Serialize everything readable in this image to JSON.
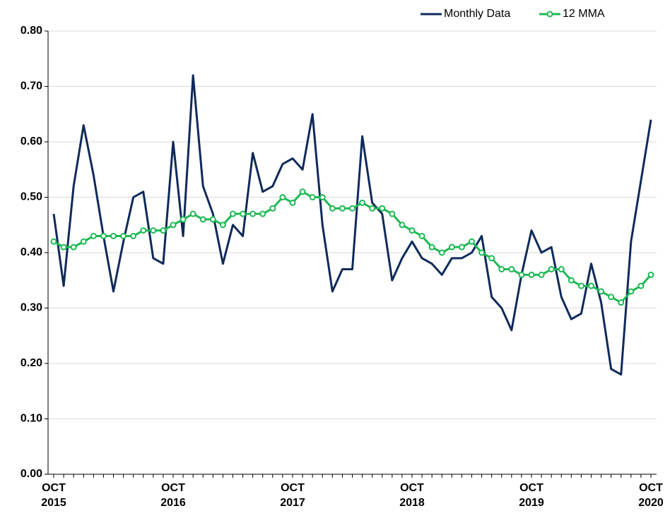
{
  "chart_data": {
    "type": "line",
    "categories": [
      "OCT 2015",
      null,
      null,
      null,
      null,
      null,
      null,
      null,
      null,
      null,
      null,
      null,
      "OCT 2016",
      null,
      null,
      null,
      null,
      null,
      null,
      null,
      null,
      null,
      null,
      null,
      "OCT 2017",
      null,
      null,
      null,
      null,
      null,
      null,
      null,
      null,
      null,
      null,
      null,
      "OCT 2018",
      null,
      null,
      null,
      null,
      null,
      null,
      null,
      null,
      null,
      null,
      null,
      "OCT 2019",
      null,
      null,
      null,
      null,
      null,
      null,
      null,
      null,
      null,
      null,
      null,
      "OCT 2020"
    ],
    "series": [
      {
        "name": "Monthly Data",
        "color": "#0f2a5a",
        "marker": false,
        "values": [
          0.47,
          0.34,
          0.52,
          0.63,
          0.54,
          0.43,
          0.33,
          0.42,
          0.5,
          0.51,
          0.39,
          0.38,
          0.6,
          0.43,
          0.72,
          0.52,
          0.47,
          0.38,
          0.45,
          0.43,
          0.58,
          0.51,
          0.52,
          0.56,
          0.57,
          0.55,
          0.65,
          0.45,
          0.33,
          0.37,
          0.37,
          0.61,
          0.49,
          0.47,
          0.35,
          0.39,
          0.42,
          0.39,
          0.38,
          0.36,
          0.39,
          0.39,
          0.4,
          0.43,
          0.32,
          0.3,
          0.26,
          0.36,
          0.44,
          0.4,
          0.41,
          0.32,
          0.28,
          0.29,
          0.38,
          0.31,
          0.19,
          0.18,
          0.42,
          0.53,
          0.64
        ]
      },
      {
        "name": "12 MMA",
        "color": "#1db954",
        "marker": true,
        "values": [
          0.42,
          0.41,
          0.41,
          0.42,
          0.43,
          0.43,
          0.43,
          0.43,
          0.43,
          0.44,
          0.44,
          0.44,
          0.45,
          0.46,
          0.47,
          0.46,
          0.46,
          0.45,
          0.47,
          0.47,
          0.47,
          0.47,
          0.48,
          0.5,
          0.49,
          0.51,
          0.5,
          0.5,
          0.48,
          0.48,
          0.48,
          0.49,
          0.48,
          0.48,
          0.47,
          0.45,
          0.44,
          0.43,
          0.41,
          0.4,
          0.41,
          0.41,
          0.42,
          0.4,
          0.39,
          0.37,
          0.37,
          0.36,
          0.36,
          0.36,
          0.37,
          0.37,
          0.35,
          0.34,
          0.34,
          0.33,
          0.32,
          0.31,
          0.33,
          0.34,
          0.36
        ]
      }
    ],
    "ylim": [
      0,
      0.8
    ],
    "yticks": [
      {
        "value": 0,
        "label": "0.00"
      },
      {
        "value": 0.1,
        "label": "0.10"
      },
      {
        "value": 0.2,
        "label": "0.20"
      },
      {
        "value": 0.3,
        "label": "0.30"
      },
      {
        "value": 0.4,
        "label": "0.40"
      },
      {
        "value": 0.5,
        "label": "0.50"
      },
      {
        "value": 0.6,
        "label": "0.60"
      },
      {
        "value": 0.7,
        "label": "0.70"
      },
      {
        "value": 0.8,
        "label": "0.80"
      }
    ],
    "grid": true,
    "legend": "top-right"
  }
}
